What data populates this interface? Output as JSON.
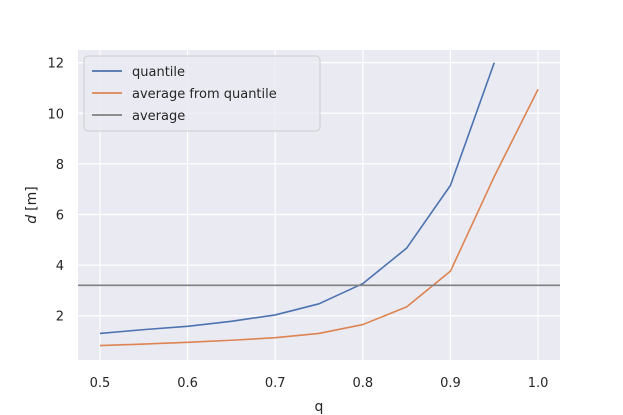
{
  "chart_data": {
    "type": "line",
    "xlabel": "q",
    "ylabel_italic": "d",
    "ylabel_unit": "[m]",
    "xlim": [
      0.475,
      1.025
    ],
    "ylim": [
      0.25,
      12.5
    ],
    "x_ticks": [
      0.5,
      0.6,
      0.7,
      0.8,
      0.9,
      1.0
    ],
    "x_tick_labels": [
      "0.5",
      "0.6",
      "0.7",
      "0.8",
      "0.9",
      "1.0"
    ],
    "y_ticks": [
      2,
      4,
      6,
      8,
      10,
      12
    ],
    "y_tick_labels": [
      "2",
      "4",
      "6",
      "8",
      "10",
      "12"
    ],
    "grid": true,
    "legend_position": "top-left",
    "series": [
      {
        "name": "quantile",
        "color": "#4c72b0",
        "x": [
          0.5,
          0.55,
          0.6,
          0.65,
          0.7,
          0.75,
          0.8,
          0.85,
          0.9,
          0.95
        ],
        "y": [
          1.3,
          1.45,
          1.58,
          1.78,
          2.03,
          2.47,
          3.27,
          4.67,
          7.15,
          12.0
        ]
      },
      {
        "name": "average from quantile",
        "color": "#dd8452",
        "x": [
          0.5,
          0.55,
          0.6,
          0.65,
          0.7,
          0.75,
          0.8,
          0.85,
          0.9,
          0.95,
          1.0
        ],
        "y": [
          0.82,
          0.88,
          0.95,
          1.03,
          1.13,
          1.3,
          1.65,
          2.35,
          3.76,
          7.5,
          10.95
        ]
      },
      {
        "name": "average",
        "color": "#808080",
        "type": "hline",
        "y": 3.2
      }
    ]
  }
}
